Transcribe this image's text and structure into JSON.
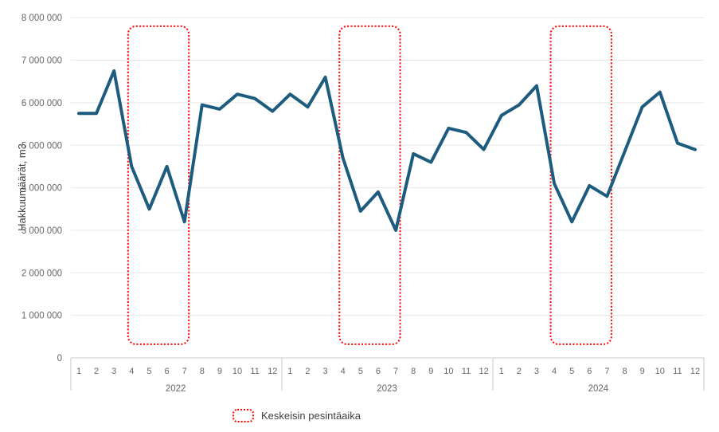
{
  "y_axis": {
    "title": "Hakkuumäärät, m3",
    "tick_labels": [
      "0",
      "1 000 000",
      "2 000 000",
      "3 000 000",
      "4 000 000",
      "5 000 000",
      "6 000 000",
      "7 000 000",
      "8 000 000"
    ]
  },
  "x_axis": {
    "month_labels": [
      "1",
      "2",
      "3",
      "4",
      "5",
      "6",
      "7",
      "8",
      "9",
      "10",
      "11",
      "12"
    ],
    "year_labels": [
      "2022",
      "2023",
      "2024"
    ]
  },
  "legend": {
    "label": "Keskeisin pesintäaika"
  },
  "chart_data": {
    "type": "line",
    "title": "",
    "xlabel": "",
    "ylabel": "Hakkuumäärät, m3",
    "ylim": [
      0,
      8000000
    ],
    "y_tick_step": 1000000,
    "grid": "horizontal",
    "legend_position": "bottom",
    "series": [
      {
        "name": "Hakkuumäärät, m3",
        "color": "#1d5c7e",
        "years": [
          {
            "year": "2022",
            "values": [
              5750000,
              5750000,
              6750000,
              4500000,
              3500000,
              4500000,
              3200000,
              5950000,
              5850000,
              6200000,
              6100000,
              5800000
            ]
          },
          {
            "year": "2023",
            "values": [
              6200000,
              5900000,
              6600000,
              4700000,
              3450000,
              3900000,
              3000000,
              4800000,
              4600000,
              5400000,
              5300000,
              4900000
            ]
          },
          {
            "year": "2024",
            "values": [
              5700000,
              5950000,
              6400000,
              4100000,
              3200000,
              4050000,
              3800000,
              4850000,
              5900000,
              6250000,
              5050000,
              4900000
            ]
          }
        ]
      }
    ],
    "highlight_boxes": {
      "label": "Keskeisin pesintäaika",
      "color": "#ff0000",
      "style": "dotted",
      "month_range": [
        4,
        7
      ],
      "years": [
        "2022",
        "2023",
        "2024"
      ],
      "value_top": 7800000,
      "value_bottom": 320000
    }
  },
  "colors": {
    "line": "#1d5c7e",
    "highlight": "#ff0000",
    "grid": "#e7e7e7",
    "axis_line": "#c9c9c9",
    "tick_text": "#666666",
    "legend_text": "#404040",
    "background": "#ffffff"
  }
}
